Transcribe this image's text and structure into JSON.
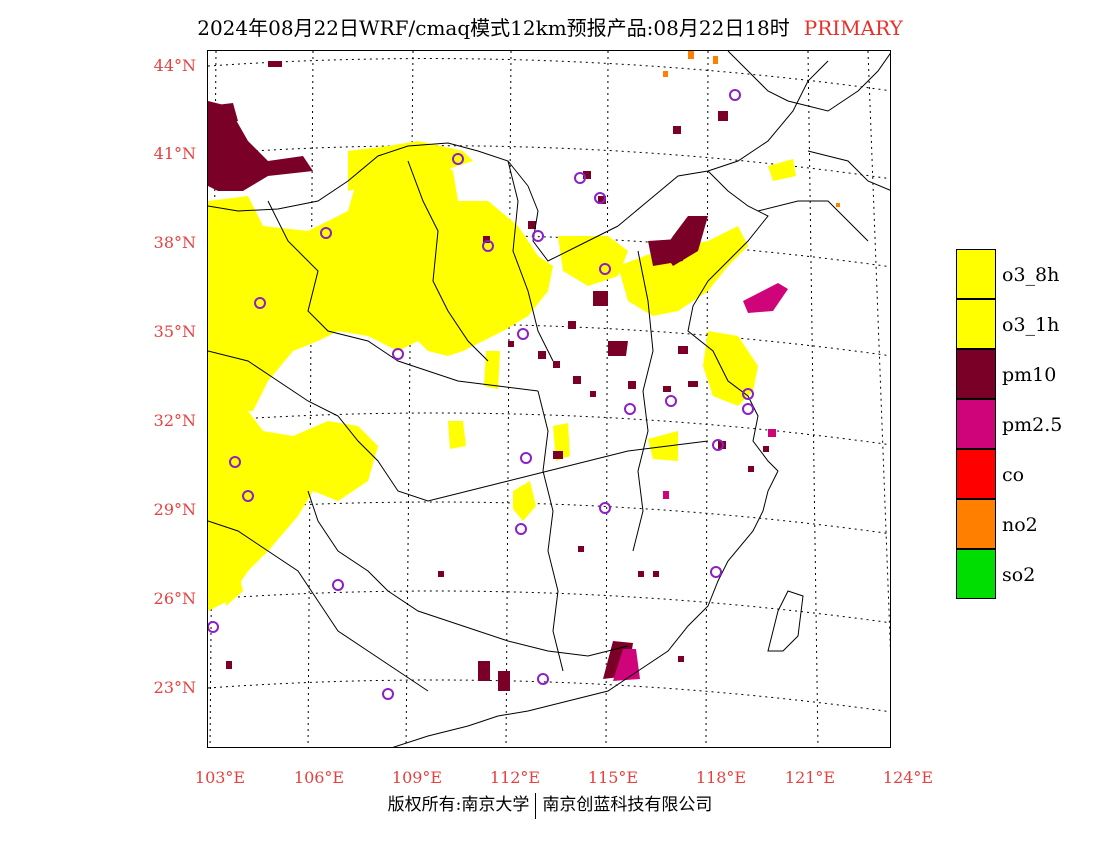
{
  "title": {
    "main": "2024年08月22日WRF/cmaq模式12km预报产品:08月22日18时",
    "tag": "PRIMARY"
  },
  "axes": {
    "lat_labels": [
      "44°N",
      "41°N",
      "38°N",
      "35°N",
      "32°N",
      "29°N",
      "26°N",
      "23°N"
    ],
    "lon_labels": [
      "103°E",
      "106°E",
      "109°E",
      "112°E",
      "115°E",
      "118°E",
      "121°E",
      "124°E"
    ]
  },
  "legend": [
    {
      "label": "o3_8h",
      "color": "#ffff00"
    },
    {
      "label": "o3_1h",
      "color": "#ffff00"
    },
    {
      "label": "pm10",
      "color": "#7a0028"
    },
    {
      "label": "pm2.5",
      "color": "#d0047a"
    },
    {
      "label": "co",
      "color": "#ff0000"
    },
    {
      "label": "no2",
      "color": "#ff8000"
    },
    {
      "label": "so2",
      "color": "#00dd00"
    }
  ],
  "credits": {
    "left": "版权所有:南京大学",
    "right": "南京创蓝科技有限公司"
  },
  "colors": {
    "axis_label": "#e84040",
    "title_tag": "#e8302a",
    "station_marker": "#8a20c8"
  }
}
